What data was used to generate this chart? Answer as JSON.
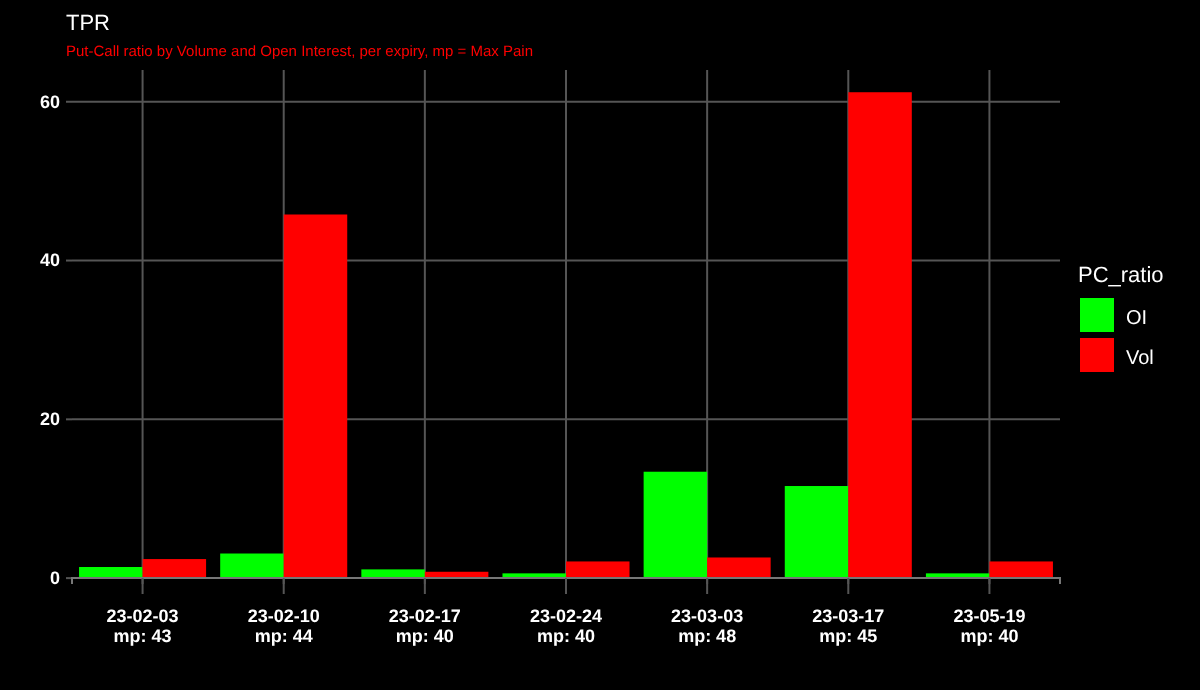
{
  "chart_data": {
    "type": "bar",
    "title": "TPR",
    "subtitle": "Put-Call ratio by Volume and Open Interest, per expiry, mp = Max Pain",
    "legend_title": "PC_ratio",
    "categories": [
      "23-02-03\nmp: 43",
      "23-02-10\nmp: 44",
      "23-02-17\nmp: 40",
      "23-02-24\nmp: 40",
      "23-03-03\nmp: 48",
      "23-03-17\nmp: 45",
      "23-05-19\nmp: 40"
    ],
    "series": [
      {
        "name": "OI",
        "color": "#00ff00",
        "values": [
          1.4,
          3.1,
          1.1,
          0.6,
          13.4,
          11.6,
          0.6
        ]
      },
      {
        "name": "Vol",
        "color": "#ff0000",
        "values": [
          2.4,
          45.8,
          0.8,
          2.1,
          2.6,
          61.2,
          2.1
        ]
      }
    ],
    "ylim": [
      -2,
      64
    ],
    "yticks": [
      0,
      20,
      40,
      60
    ],
    "grid": true,
    "legend": "right"
  }
}
